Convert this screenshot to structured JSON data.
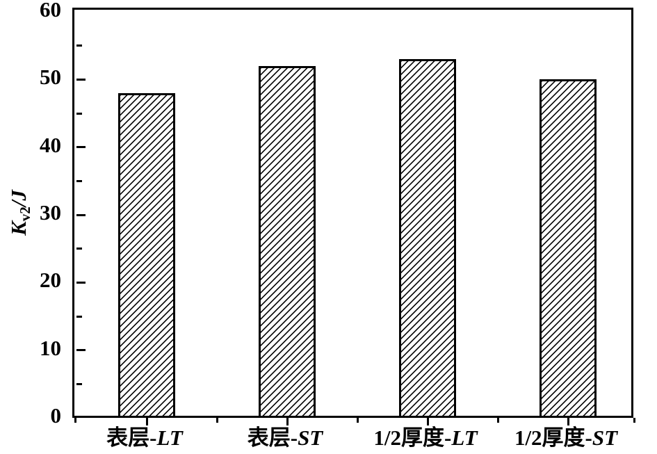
{
  "figure": {
    "background_color": "#ffffff",
    "line_color": "#000000",
    "bar_fill_style": "diagonal-hatch",
    "hatch_pattern": "////"
  },
  "chart_data": {
    "type": "bar",
    "title": "",
    "categories": [
      "表层-LT",
      "表层-ST",
      "1/2厚度-LT",
      "1/2厚度-ST"
    ],
    "values": [
      48,
      52,
      53,
      50
    ],
    "series": [
      {
        "name": "Kv2",
        "values": [
          48,
          52,
          53,
          50
        ]
      }
    ],
    "xlabel": "",
    "ylabel": "Kv2/J",
    "ylabel_parts": {
      "symbol": "K",
      "subscript": "v2",
      "suffix": "/J"
    },
    "ylim": [
      0,
      60
    ],
    "yticks": [
      0,
      10,
      20,
      30,
      40,
      50,
      60
    ],
    "ytick_minor_step": 5,
    "grid": false,
    "legend_position": "none",
    "bar_outline_color": "#000000",
    "bar_fill_color": "#ffffff"
  }
}
